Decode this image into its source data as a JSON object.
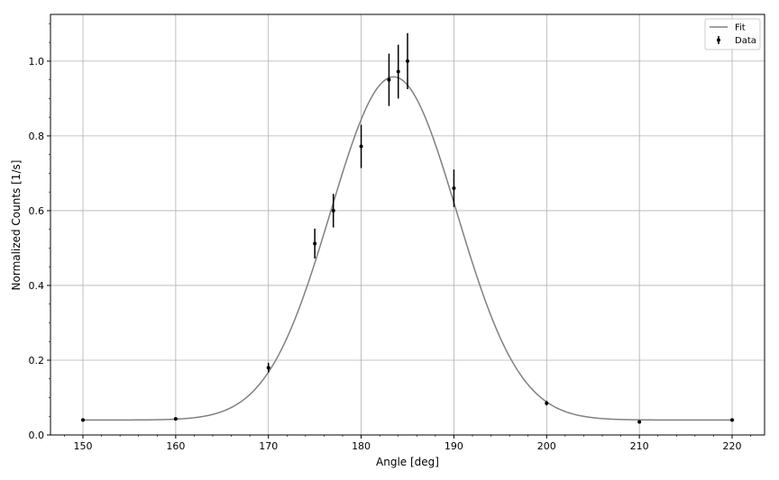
{
  "chart_data": {
    "type": "scatter",
    "xlabel": "Angle [deg]",
    "ylabel": "Normalized Counts [1/s]",
    "xlim": [
      146.5,
      223.5
    ],
    "ylim": [
      0.0,
      1.125
    ],
    "xticks": [
      150,
      160,
      170,
      180,
      190,
      200,
      210,
      220
    ],
    "yticks": [
      0.0,
      0.2,
      0.4,
      0.6,
      0.8,
      1.0
    ],
    "xtick_labels": [
      "150",
      "160",
      "170",
      "180",
      "190",
      "200",
      "210",
      "220"
    ],
    "ytick_labels": [
      "0.0",
      "0.2",
      "0.4",
      "0.6",
      "0.8",
      "1.0"
    ],
    "grid": true,
    "legend_position": "top-right",
    "series": [
      {
        "name": "Data",
        "style": "errorbar",
        "color": "#000000",
        "x": [
          150,
          160,
          170,
          175,
          177,
          180,
          183,
          184,
          185,
          190,
          200,
          210,
          220
        ],
        "y": [
          0.04,
          0.043,
          0.18,
          0.512,
          0.6,
          0.772,
          0.95,
          0.972,
          1.0,
          0.66,
          0.085,
          0.035,
          0.04
        ],
        "yerr": [
          0.003,
          0.003,
          0.013,
          0.04,
          0.045,
          0.058,
          0.07,
          0.072,
          0.075,
          0.05,
          0.006,
          0.003,
          0.003
        ]
      },
      {
        "name": "Fit",
        "style": "line",
        "color": "#808080",
        "model": "gaussian_plus_offset",
        "params": {
          "amplitude": 0.918,
          "center": 183.5,
          "sigma": 6.8,
          "offset": 0.04
        },
        "x_range": [
          150,
          220
        ]
      }
    ]
  }
}
